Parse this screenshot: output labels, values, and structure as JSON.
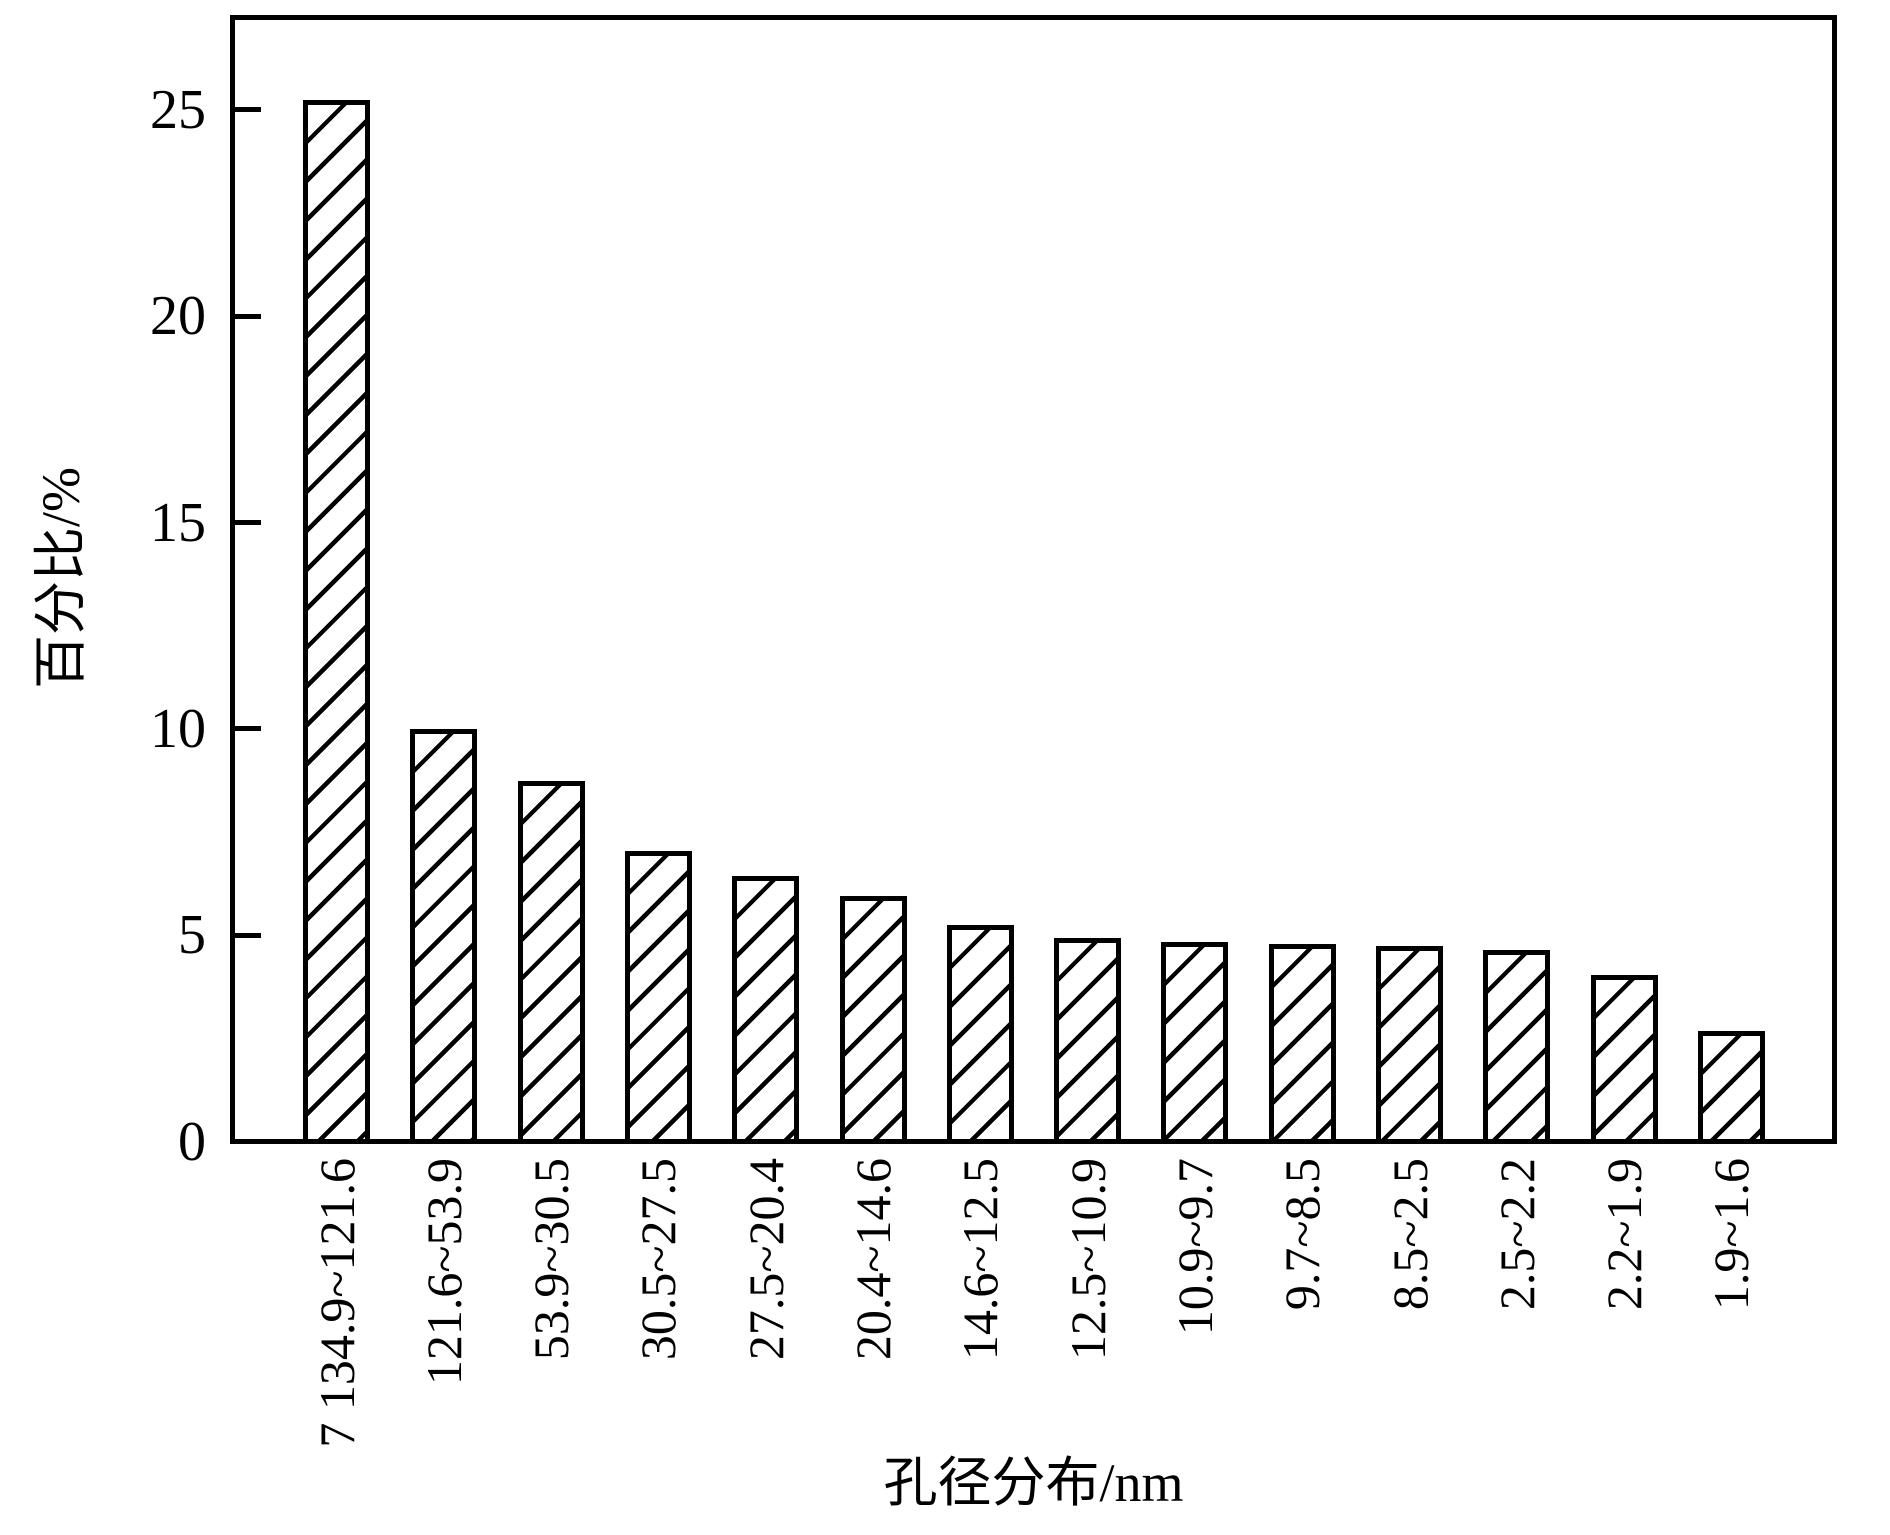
{
  "page": {
    "background": "#ffffff"
  },
  "chart_data": {
    "type": "bar",
    "title": "",
    "ylabel": "百分比/%",
    "xlabel": "孔径分布/nm",
    "categories": [
      "7 134.9~121.6",
      "121.6~53.9",
      "53.9~30.5",
      "30.5~27.5",
      "27.5~20.4",
      "20.4~14.6",
      "14.6~12.5",
      "12.5~10.9",
      "10.9~9.7",
      "9.7~8.5",
      "8.5~2.5",
      "2.5~2.2",
      "2.2~1.9",
      "1.9~1.6"
    ],
    "values": [
      25.3,
      10.05,
      8.8,
      7.1,
      6.5,
      6.0,
      5.3,
      5.0,
      4.9,
      4.85,
      4.8,
      4.7,
      4.1,
      2.75
    ],
    "yticks": [
      0,
      5,
      10,
      15,
      20,
      25
    ],
    "ylim": [
      0,
      27.3
    ],
    "grid": false,
    "legend_position": "none",
    "bar_style": {
      "fill": "#ffffff",
      "hatch": "diagonal-forward",
      "line_color": "#000000"
    }
  }
}
